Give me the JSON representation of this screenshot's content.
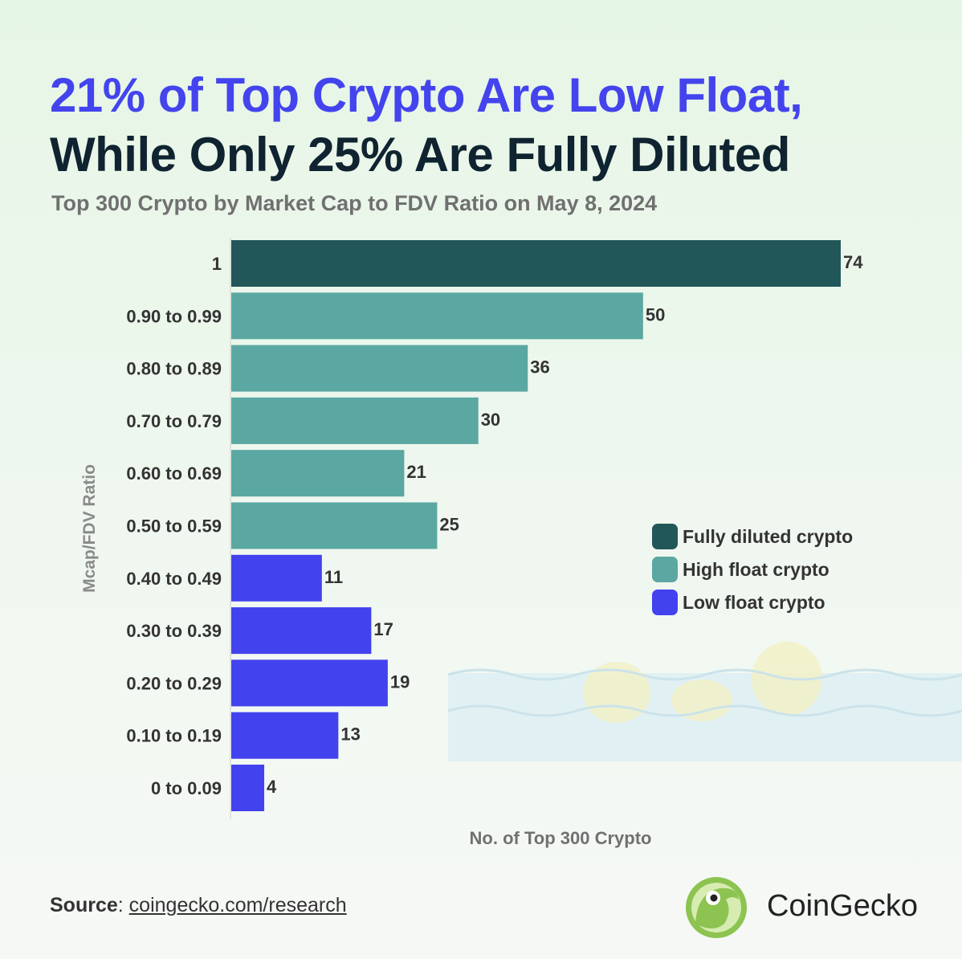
{
  "title_line1": "21% of Top Crypto Are Low Float,",
  "title_line2": "While Only 25% Are Fully Diluted",
  "subtitle": "Top 300 Crypto by Market Cap to FDV Ratio on May 8, 2024",
  "source": {
    "label": "Source",
    "separator": ":",
    "link": "coingecko.com/research"
  },
  "brand": "CoinGecko",
  "colors": {
    "fully_diluted": "#22575a",
    "high_float": "#5ba8a2",
    "low_float": "#4242ee",
    "title_accent": "#4444ee"
  },
  "chart_data": {
    "type": "bar",
    "orientation": "horizontal",
    "ylabel": "Mcap/FDV Ratio",
    "xlabel": "No. of Top 300 Crypto",
    "categories": [
      "1",
      "0.90 to 0.99",
      "0.80 to 0.89",
      "0.70 to 0.79",
      "0.60 to 0.69",
      "0.50 to 0.59",
      "0.40 to 0.49",
      "0.30 to 0.39",
      "0.20 to 0.29",
      "0.10 to 0.19",
      "0 to 0.09"
    ],
    "values": [
      74,
      50,
      36,
      30,
      21,
      25,
      11,
      17,
      19,
      13,
      4
    ],
    "groups": [
      "fully_diluted",
      "high_float",
      "high_float",
      "high_float",
      "high_float",
      "high_float",
      "low_float",
      "low_float",
      "low_float",
      "low_float",
      "low_float"
    ],
    "legend": [
      {
        "key": "fully_diluted",
        "label": "Fully diluted crypto"
      },
      {
        "key": "high_float",
        "label": "High float crypto"
      },
      {
        "key": "low_float",
        "label": "Low float crypto"
      }
    ],
    "legend_position": "right",
    "xlim": [
      0,
      74
    ],
    "grid": false
  }
}
